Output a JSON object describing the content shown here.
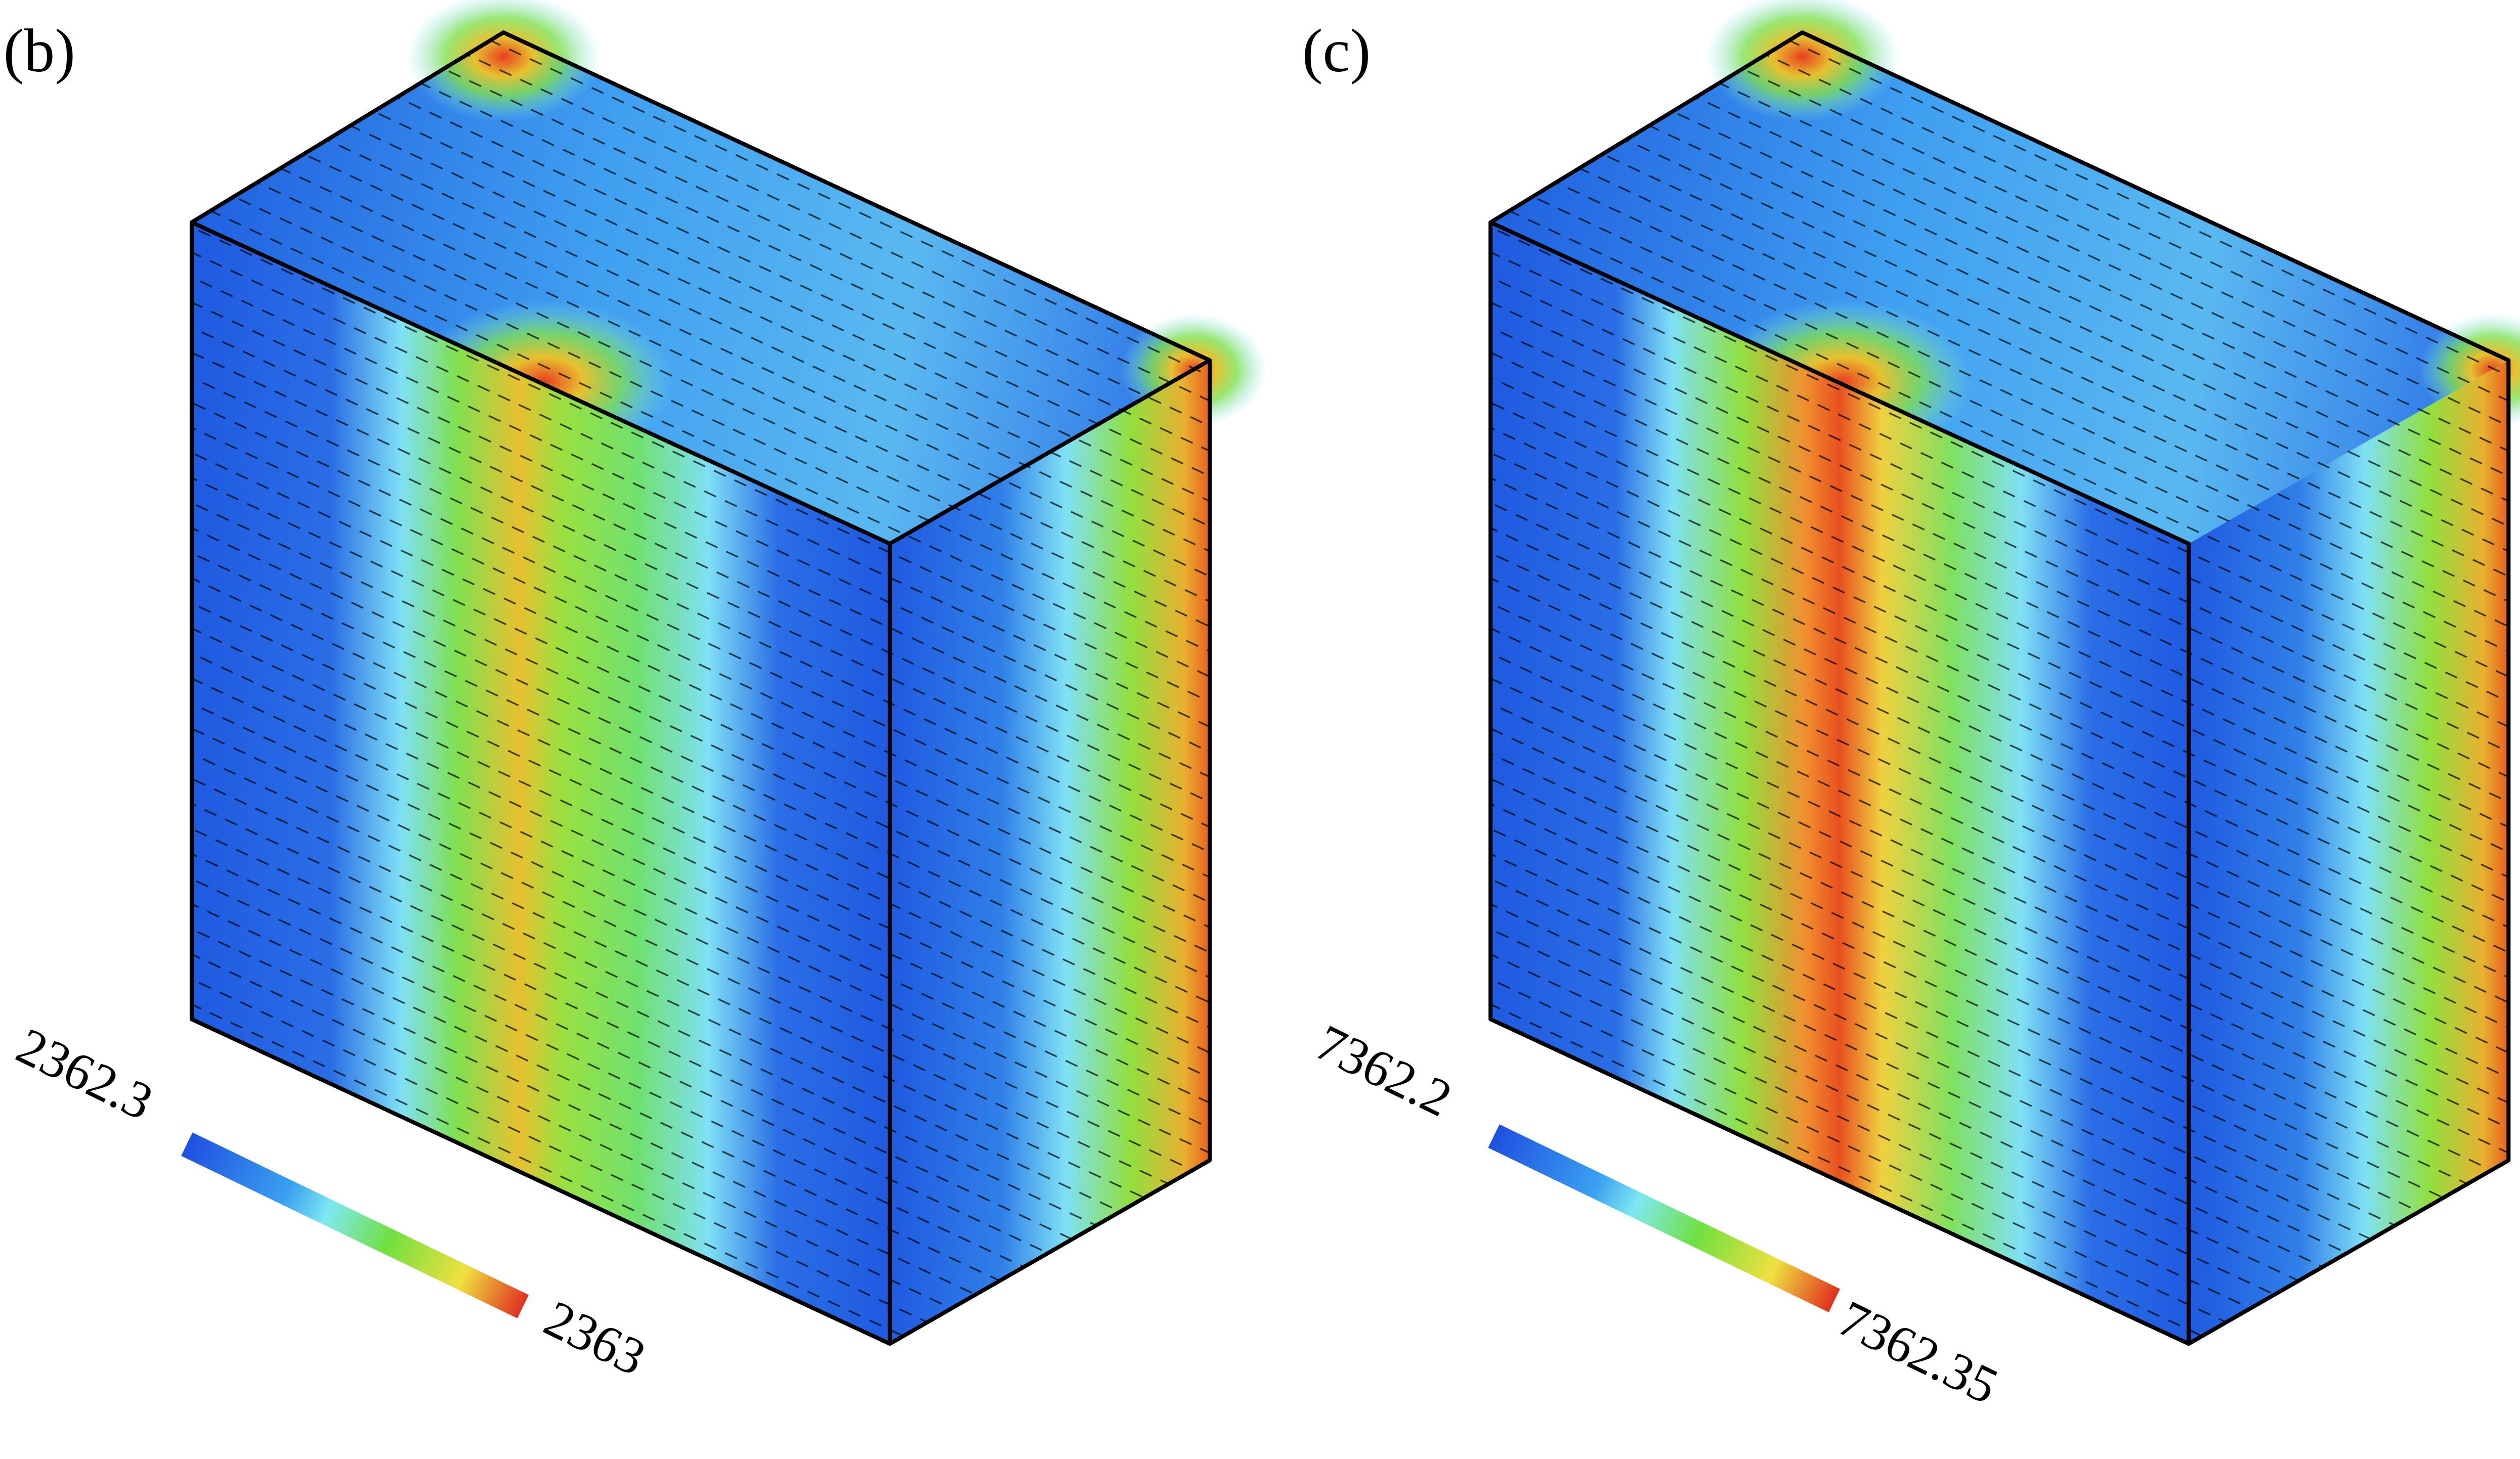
{
  "panels": [
    {
      "label": "(b)",
      "colorbar_min": 2362.3,
      "colorbar_max": 2363
    },
    {
      "label": "(c)",
      "colorbar_min": 7362.2,
      "colorbar_max": 7362.35
    }
  ]
}
